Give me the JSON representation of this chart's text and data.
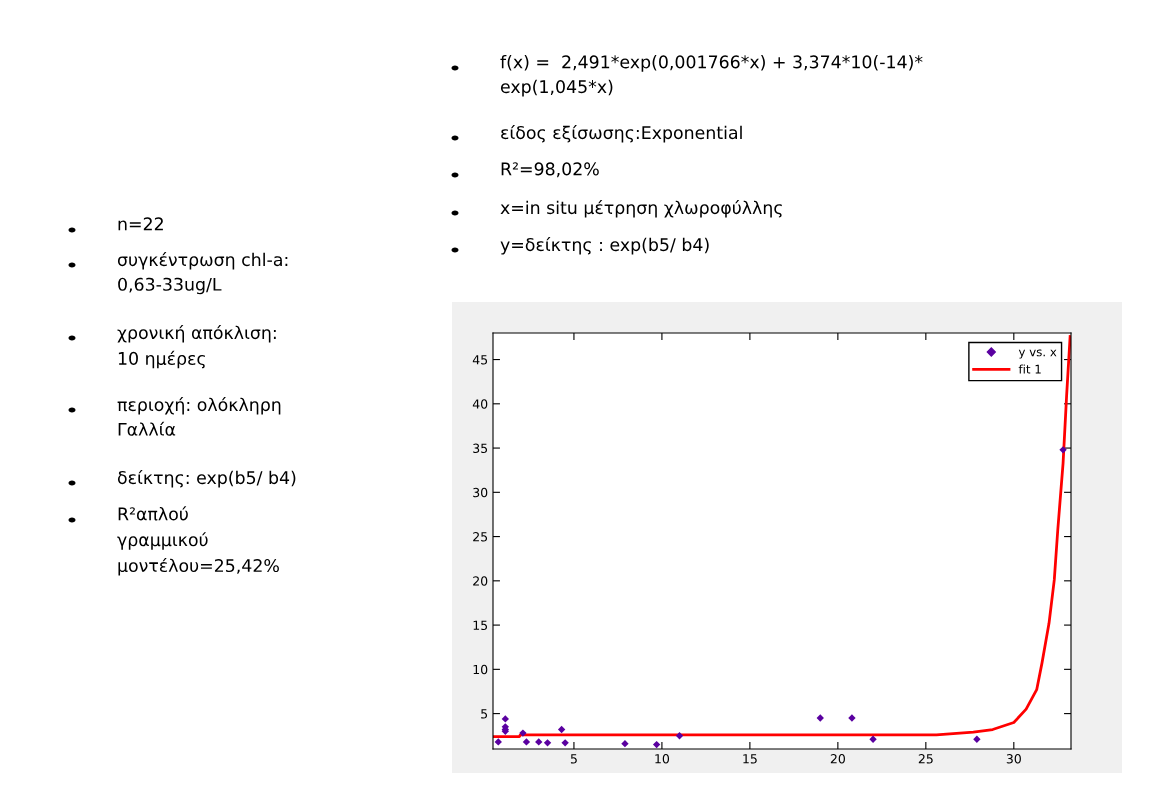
{
  "chart_data": {
    "type": "scatter",
    "xlim": [
      0.4,
      33.25
    ],
    "ylim": [
      1,
      48
    ],
    "xticks": [
      5,
      10,
      15,
      20,
      25,
      30
    ],
    "yticks": [
      5,
      10,
      15,
      20,
      25,
      30,
      35,
      40,
      45
    ],
    "grid": false,
    "legend": "top right",
    "series": [
      {
        "name": "y vs. x",
        "color": "#5a00a0",
        "marker": "diamond",
        "x": [
          0.7,
          1.1,
          1.1,
          1.1,
          1.1,
          2.1,
          2.3,
          3.0,
          3.5,
          4.3,
          4.5,
          7.9,
          9.7,
          11.0,
          19.0,
          20.8,
          22.0,
          27.9,
          32.8
        ],
        "values": [
          1.8,
          4.4,
          3.5,
          3.2,
          3.0,
          2.8,
          1.8,
          1.8,
          1.7,
          3.2,
          1.7,
          1.6,
          1.5,
          2.5,
          4.5,
          4.5,
          2.1,
          2.1,
          34.8
        ]
      },
      {
        "name": "fit 1",
        "type": "line",
        "color": "#ff0000",
        "line_style": "solid",
        "x": [
          0.4,
          1.9,
          1.95,
          15.5,
          25.6,
          27.7,
          28.8,
          30.0,
          30.7,
          31.3,
          31.6,
          32.0,
          32.3,
          32.5,
          32.8,
          33.0,
          33.2
        ],
        "values": [
          2.4,
          2.4,
          2.6,
          2.6,
          2.6,
          2.9,
          3.2,
          4.0,
          5.5,
          7.7,
          10.7,
          15.2,
          20.1,
          25.8,
          33.3,
          40.9,
          47.6
        ]
      }
    ],
    "annotations": [
      "f(x) =  2,491*exp(0,001766*x) + 3,374*10(-14)*\nexp(1,045*x)",
      "είδος εξίσωσης:Exponential",
      "R²=98,02%",
      "x=in situ μέτρηση χλωροφύλλης",
      "y=δείκτης : exp(b5/ b4)",
      "n=22",
      "συγκέντρωση chl-a:\n0,63-33ug/L",
      "χρονική απόκλιση:\n10 ημέρες",
      "περιοχή: ολόκληρη\nΓαλλία",
      "δείκτης: exp(b5/ b4)",
      "R²απλού\nγραμμικού\nμοντέλου=25,42%"
    ]
  }
}
